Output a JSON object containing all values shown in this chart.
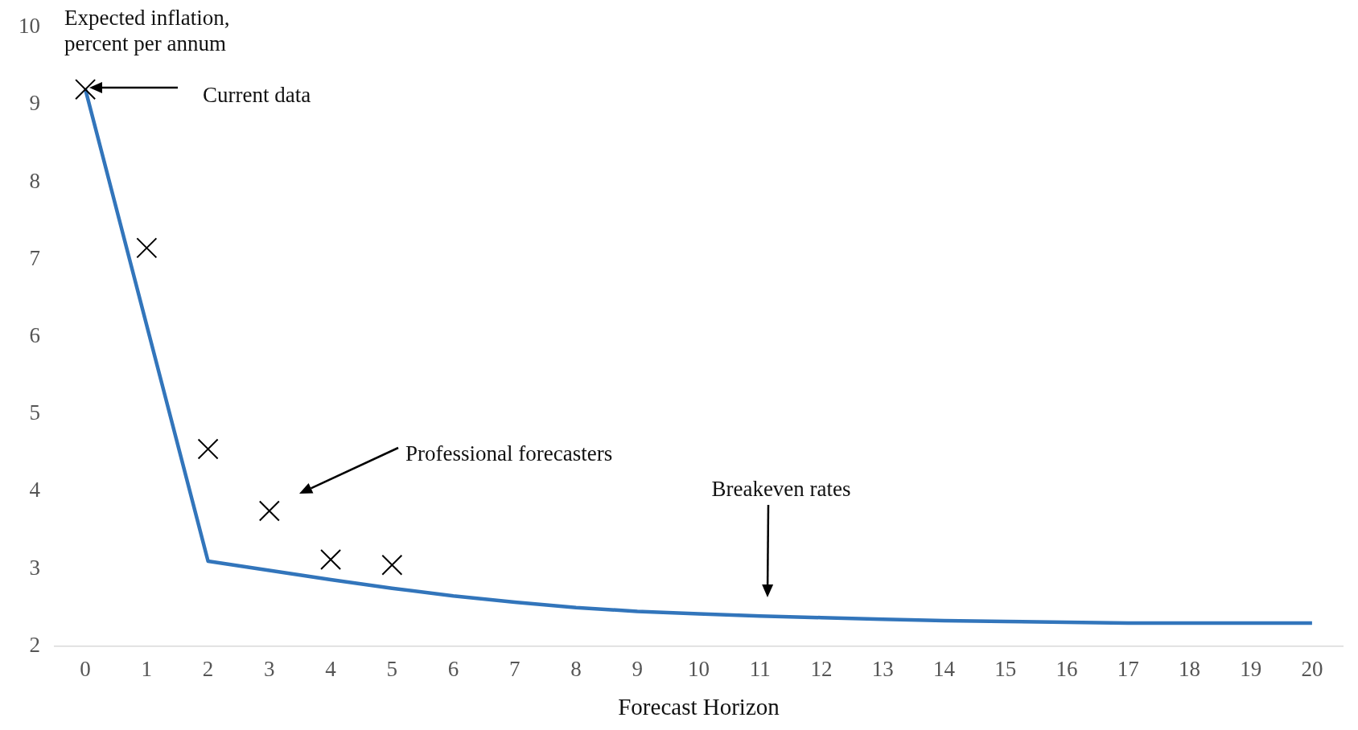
{
  "chart_data": {
    "type": "line",
    "xlabel": "Forecast Horizon",
    "ylabel": "Expected inflation, percent per annum",
    "x": [
      0,
      1,
      2,
      3,
      4,
      5,
      6,
      7,
      8,
      9,
      10,
      11,
      12,
      13,
      14,
      15,
      16,
      17,
      18,
      19,
      20
    ],
    "xlim": [
      -0.5,
      20.5
    ],
    "xticks": [
      0,
      1,
      2,
      3,
      4,
      5,
      6,
      7,
      8,
      9,
      10,
      11,
      12,
      13,
      14,
      15,
      16,
      17,
      18,
      19,
      20
    ],
    "ylim": [
      2,
      10
    ],
    "yticks": [
      2,
      3,
      4,
      5,
      6,
      7,
      8,
      9,
      10
    ],
    "grid": false,
    "legend": false,
    "series": [
      {
        "color": "#3275bb",
        "marker": "none",
        "line_style": "solid",
        "values": [
          9.2,
          6.15,
          3.1,
          2.98,
          2.86,
          2.75,
          2.65,
          2.57,
          2.5,
          2.45,
          2.42,
          2.39,
          2.37,
          2.35,
          2.33,
          2.32,
          2.31,
          2.3,
          2.3,
          2.3,
          2.3
        ]
      },
      {
        "type": "scatter",
        "color": "#000000",
        "marker": "cross",
        "x": [
          0,
          1,
          2,
          3,
          4,
          5
        ],
        "values": [
          9.2,
          7.15,
          4.55,
          3.75,
          3.12,
          3.05
        ]
      }
    ],
    "annotations": [
      "Current data",
      "Professional forecasters",
      "Breakeven rates"
    ]
  }
}
